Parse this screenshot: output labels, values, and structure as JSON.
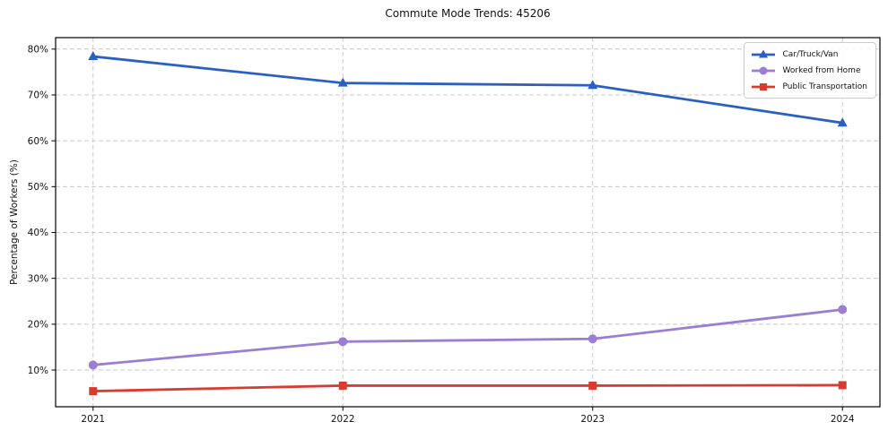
{
  "chart_data": {
    "type": "line",
    "title": "Commute Mode Trends: 45206",
    "xlabel": "",
    "ylabel": "Percentage of Workers (%)",
    "x": [
      2021,
      2022,
      2023,
      2024
    ],
    "x_tick_labels": [
      "2021",
      "2022",
      "2023",
      "2024"
    ],
    "xlim": [
      2020.85,
      2024.15
    ],
    "ylim": [
      2,
      82.5
    ],
    "y_ticks": [
      10,
      20,
      30,
      40,
      50,
      60,
      70,
      80
    ],
    "y_tick_suffix": "%",
    "grid": "dashed, both axes",
    "legend_position": "upper right",
    "series": [
      {
        "name": "Car/Truck/Van",
        "marker": "triangle",
        "color": "#2a5fc4",
        "values": [
          78.4,
          72.6,
          72.1,
          63.9
        ]
      },
      {
        "name": "Worked from Home",
        "marker": "circle",
        "color": "#9b7dd4",
        "values": [
          11.1,
          16.2,
          16.8,
          23.2
        ]
      },
      {
        "name": "Public Transportation",
        "marker": "square",
        "color": "#da3b30",
        "values": [
          5.4,
          6.6,
          6.6,
          6.7
        ]
      }
    ],
    "style": {
      "grid_color": "#c9c9c9",
      "spine_color": "#000000",
      "background": "#ffffff"
    }
  }
}
